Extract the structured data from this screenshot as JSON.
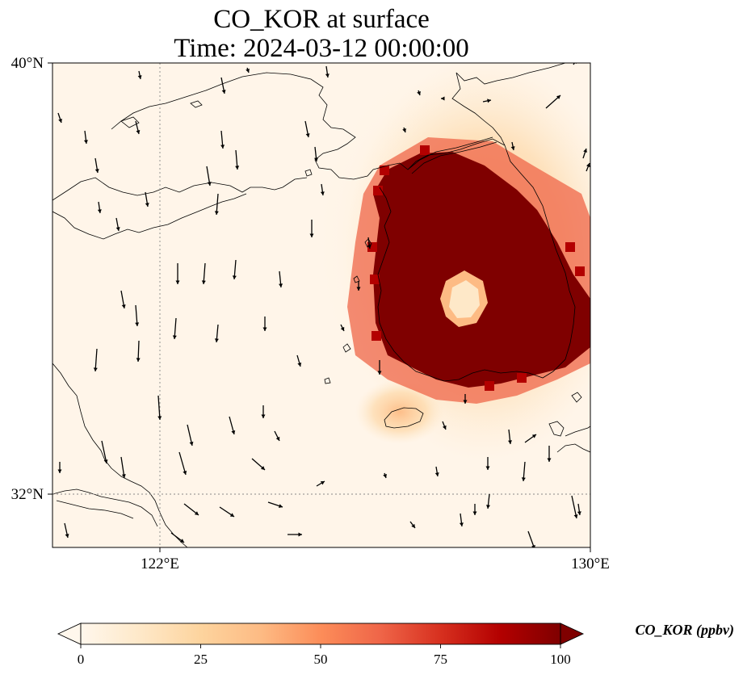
{
  "title_line1": "CO_KOR at surface",
  "title_line2": "Time: 2024-03-12 00:00:00",
  "map": {
    "lon_range": [
      120,
      130
    ],
    "lat_range": [
      31,
      40
    ],
    "lat_tick_labels": [
      {
        "lat": 40,
        "label": "40°N"
      },
      {
        "lat": 32,
        "label": "32°N"
      }
    ],
    "lon_tick_labels": [
      {
        "lon": 122,
        "label": "122°E"
      },
      {
        "lon": 130,
        "label": "130°E"
      }
    ],
    "gridlines": {
      "lat": [
        32
      ],
      "lon": [
        122
      ],
      "style": "dotted"
    },
    "high_concentration_region": "Korean Peninsula",
    "colormap": "OrRd"
  },
  "colorbar": {
    "label": "CO_KOR (ppbv)",
    "min": 0,
    "max": 100,
    "extend": "both",
    "ticks": [
      "0",
      "25",
      "50",
      "75",
      "100"
    ],
    "colors": [
      "#fff7ec",
      "#fee8c8",
      "#fdd49e",
      "#fdbb84",
      "#fc8d59",
      "#ef6548",
      "#d7301f",
      "#b30000",
      "#7f0000"
    ]
  }
}
